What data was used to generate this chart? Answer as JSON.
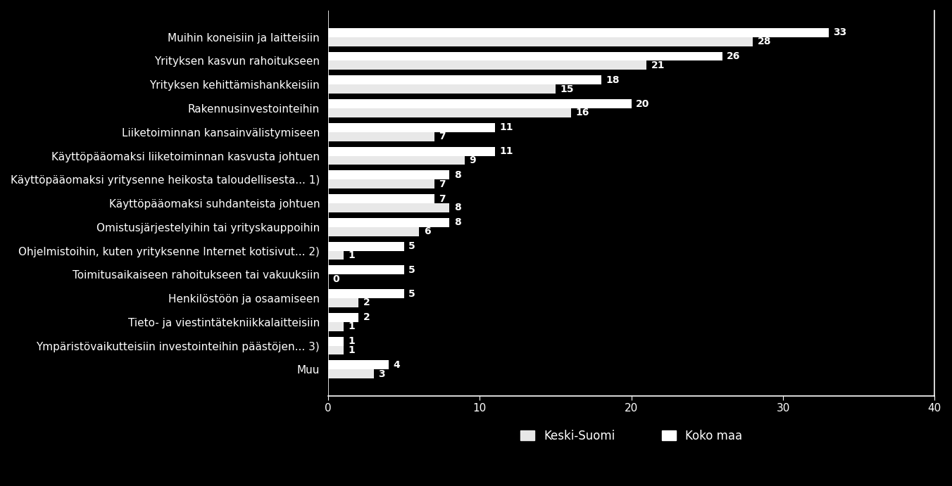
{
  "categories": [
    "Muihin koneisiin ja laitteisiin",
    "Yrityksen kasvun rahoitukseen",
    "Yrityksen kehittämishankkeisiin",
    "Rakennusinvestointeihin",
    "Liiketoiminnan kansainvälistymiseen",
    "Käyttöpääomaksi liiketoiminnan kasvusta johtuen",
    "Käyttöpääomaksi yritysenne heikosta taloudellisesta... 1)",
    "Käyttöpääomaksi suhdanteista johtuen",
    "Omistusjärjestelyihin tai yrityskauppoihin",
    "Ohjelmistoihin, kuten yrityksenne Internet kotisivut... 2)",
    "Toimitusaikaiseen rahoitukseen tai vakuuksiin",
    "Henkilöstöön ja osaamiseen",
    "Tieto- ja viestintätekniikkalaitteisiin",
    "Ympäristövaikutteisiin investointeihin päästöjen... 3)",
    "Muu"
  ],
  "keski_suomi": [
    28,
    21,
    15,
    16,
    7,
    9,
    7,
    8,
    6,
    1,
    0,
    2,
    1,
    1,
    3
  ],
  "koko_maa": [
    33,
    26,
    18,
    20,
    11,
    11,
    8,
    7,
    8,
    5,
    5,
    5,
    2,
    1,
    4
  ],
  "color_keski_suomi": "#e8e8e8",
  "color_koko_maa": "#ffffff",
  "background_color": "#000000",
  "text_color": "#ffffff",
  "xlim": [
    0,
    40
  ],
  "xticks": [
    0,
    10,
    20,
    30,
    40
  ],
  "legend_keski_suomi": "Keski-Suomi",
  "legend_koko_maa": "Koko maa",
  "bar_height": 0.38,
  "value_fontsize": 10,
  "label_fontsize": 11,
  "tick_fontsize": 11,
  "legend_fontsize": 12
}
